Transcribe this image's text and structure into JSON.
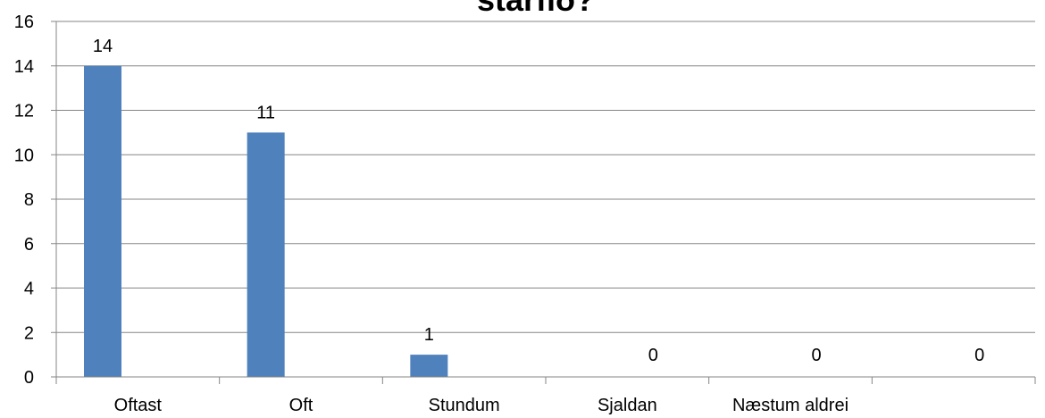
{
  "chart_data": {
    "type": "bar",
    "title": "starfið?",
    "categories": [
      "Oftast",
      "Oft",
      "Stundum",
      "Sjaldan",
      "Næstum aldrei",
      ""
    ],
    "values": [
      14,
      11,
      1,
      0,
      0,
      0
    ],
    "data_labels": [
      "14",
      "11",
      "1",
      "0",
      "0",
      "0"
    ],
    "ylim": [
      0,
      16
    ],
    "yticks": [
      "0",
      "2",
      "4",
      "6",
      "8",
      "10",
      "12",
      "14",
      "16"
    ],
    "grid": true,
    "legend": "none",
    "colors": {
      "bar": "#4f81bd",
      "grid": "#868686",
      "axis": "#868686"
    }
  }
}
